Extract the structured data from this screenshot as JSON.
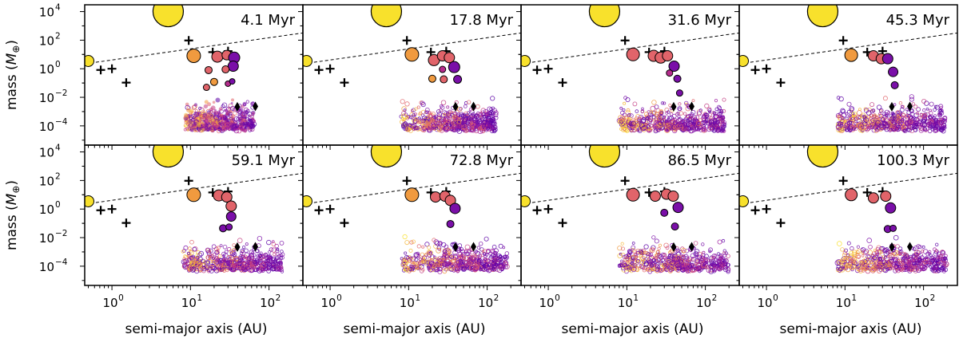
{
  "chart_data": {
    "type": "scatter",
    "layout": "2x4 grid of panels, shared axes",
    "xlabel": "semi-major axis (AU)",
    "ylabel": "mass (M⊕)",
    "ylabel_parts": [
      "mass (",
      "M",
      "⊕",
      ")"
    ],
    "xscale": "log",
    "yscale": "log",
    "xlim": [
      0.45,
      270
    ],
    "ylim": [
      4.5e-06,
      30000
    ],
    "x_ticks": [
      {
        "value": 1,
        "base": "10",
        "exp": "0"
      },
      {
        "value": 10,
        "base": "10",
        "exp": "1"
      },
      {
        "value": 100,
        "base": "10",
        "exp": "2"
      }
    ],
    "y_ticks": [
      {
        "value": 0.0001,
        "base": "10",
        "exp": "−4"
      },
      {
        "value": 0.01,
        "base": "10",
        "exp": "−2"
      },
      {
        "value": 1,
        "base": "10",
        "exp": "0"
      },
      {
        "value": 100,
        "base": "10",
        "exp": "2"
      },
      {
        "value": 10000,
        "base": "10",
        "exp": "4"
      }
    ],
    "reference_line": {
      "style": "dashed",
      "color": "#000000",
      "points": [
        [
          0.45,
          2.2
        ],
        [
          270,
          320
        ]
      ]
    },
    "solar_system": {
      "marker": "+",
      "color": "#000000",
      "points": [
        [
          0.72,
          0.82
        ],
        [
          1.0,
          1.0
        ],
        [
          1.52,
          0.107
        ],
        [
          9.5,
          95
        ],
        [
          19.2,
          14.5
        ],
        [
          30.1,
          17.1
        ]
      ]
    },
    "big_planet": {
      "x": 5.2,
      "y": 10000,
      "label": "large yellow planet",
      "color": "#f8e12c"
    },
    "inner_planet": {
      "x": 0.5,
      "y": 3.5,
      "color": "#f8e12c"
    },
    "diamonds": {
      "marker": "diamond",
      "color": "#000000",
      "points": [
        [
          39.5,
          0.0022
        ],
        [
          67,
          0.0023
        ]
      ]
    },
    "colors": {
      "yellow": "#f8e12c",
      "orange": "#f09a3f",
      "salmon": "#e1646a",
      "magenta": "#b62c8d",
      "purple": "#7a0fa8",
      "edge": "#000000"
    },
    "panels": [
      {
        "time": "4.1 Myr",
        "planets": [
          {
            "x": 11,
            "y": 8,
            "size": 8.5,
            "color": "#f09a3f"
          },
          {
            "x": 22,
            "y": 7,
            "size": 7,
            "color": "#e1646a"
          },
          {
            "x": 29,
            "y": 9,
            "size": 6,
            "color": "#e1646a"
          },
          {
            "x": 36,
            "y": 6,
            "size": 7,
            "color": "#7a0fa8"
          },
          {
            "x": 35,
            "y": 1.5,
            "size": 6.5,
            "color": "#7a0fa8"
          },
          {
            "x": 17,
            "y": 0.8,
            "size": 4.5,
            "color": "#e1646a"
          },
          {
            "x": 28,
            "y": 0.9,
            "size": 4.5,
            "color": "#e1646a"
          },
          {
            "x": 20,
            "y": 0.12,
            "size": 4.5,
            "color": "#f09a3f"
          },
          {
            "x": 16,
            "y": 0.05,
            "size": 4,
            "color": "#e1646a"
          },
          {
            "x": 30,
            "y": 0.09,
            "size": 3.5,
            "color": "#b62c8d"
          },
          {
            "x": 34,
            "y": 0.13,
            "size": 3.5,
            "color": "#7a0fa8"
          }
        ],
        "cloud": {
          "xmin": 8.5,
          "xmax": 65,
          "center": 23,
          "spread": 0.32,
          "ymax": 0.012,
          "purple_fraction": 0.45,
          "filled": true,
          "density": 560,
          "seed": 11
        }
      },
      {
        "time": "17.8 Myr",
        "planets": [
          {
            "x": 11,
            "y": 10,
            "size": 8.5,
            "color": "#f09a3f"
          },
          {
            "x": 21,
            "y": 4,
            "size": 7,
            "color": "#e1646a"
          },
          {
            "x": 27,
            "y": 8,
            "size": 6.5,
            "color": "#e1646a"
          },
          {
            "x": 33,
            "y": 6,
            "size": 6.5,
            "color": "#e1646a"
          },
          {
            "x": 38,
            "y": 1.3,
            "size": 7,
            "color": "#7a0fa8"
          },
          {
            "x": 42,
            "y": 0.18,
            "size": 5,
            "color": "#7a0fa8"
          },
          {
            "x": 20,
            "y": 0.2,
            "size": 4.5,
            "color": "#f09a3f"
          },
          {
            "x": 28,
            "y": 0.18,
            "size": 4.5,
            "color": "#e1646a"
          },
          {
            "x": 27,
            "y": 0.9,
            "size": 4,
            "color": "#b62c8d"
          }
        ],
        "cloud": {
          "xmin": 8,
          "xmax": 130,
          "center": 40,
          "spread": 0.42,
          "ymax": 0.012,
          "purple_fraction": 0.6,
          "filled": false,
          "density": 620,
          "seed": 23
        }
      },
      {
        "time": "31.6 Myr",
        "planets": [
          {
            "x": 12,
            "y": 10,
            "size": 8,
            "color": "#e1646a"
          },
          {
            "x": 22,
            "y": 8,
            "size": 7,
            "color": "#e1646a"
          },
          {
            "x": 27,
            "y": 6,
            "size": 7,
            "color": "#e1646a"
          },
          {
            "x": 33,
            "y": 8,
            "size": 6.5,
            "color": "#e1646a"
          },
          {
            "x": 40,
            "y": 1.5,
            "size": 6.5,
            "color": "#7a0fa8"
          },
          {
            "x": 44,
            "y": 0.2,
            "size": 4.5,
            "color": "#7a0fa8"
          },
          {
            "x": 47,
            "y": 0.02,
            "size": 4,
            "color": "#7a0fa8"
          },
          {
            "x": 35,
            "y": 0.5,
            "size": 4,
            "color": "#b62c8d"
          }
        ],
        "cloud": {
          "xmin": 8,
          "xmax": 180,
          "center": 42,
          "spread": 0.45,
          "ymax": 0.012,
          "purple_fraction": 0.62,
          "filled": false,
          "density": 600,
          "seed": 37
        }
      },
      {
        "time": "45.3 Myr",
        "planets": [
          {
            "x": 12,
            "y": 9,
            "size": 8,
            "color": "#f09a3f"
          },
          {
            "x": 23,
            "y": 8,
            "size": 6.5,
            "color": "#e1646a"
          },
          {
            "x": 29,
            "y": 5,
            "size": 6.5,
            "color": "#e1646a"
          },
          {
            "x": 35,
            "y": 5,
            "size": 6.5,
            "color": "#7a0fa8"
          },
          {
            "x": 41,
            "y": 0.6,
            "size": 6,
            "color": "#7a0fa8"
          },
          {
            "x": 43,
            "y": 0.07,
            "size": 4.5,
            "color": "#7a0fa8"
          }
        ],
        "cloud": {
          "xmin": 8,
          "xmax": 190,
          "center": 42,
          "spread": 0.45,
          "ymax": 0.012,
          "purple_fraction": 0.62,
          "filled": false,
          "density": 580,
          "seed": 41
        }
      },
      {
        "time": "59.1 Myr",
        "planets": [
          {
            "x": 11,
            "y": 10,
            "size": 8.5,
            "color": "#f09a3f"
          },
          {
            "x": 23,
            "y": 9,
            "size": 7,
            "color": "#e1646a"
          },
          {
            "x": 29,
            "y": 7,
            "size": 6.5,
            "color": "#e1646a"
          },
          {
            "x": 33,
            "y": 1.6,
            "size": 6.5,
            "color": "#e1646a"
          },
          {
            "x": 33,
            "y": 0.3,
            "size": 6,
            "color": "#7a0fa8"
          },
          {
            "x": 26,
            "y": 0.045,
            "size": 4.5,
            "color": "#7a0fa8"
          },
          {
            "x": 31,
            "y": 0.055,
            "size": 4,
            "color": "#7a0fa8"
          }
        ],
        "cloud": {
          "xmin": 8,
          "xmax": 150,
          "center": 38,
          "spread": 0.42,
          "ymax": 0.012,
          "purple_fraction": 0.58,
          "filled": false,
          "density": 560,
          "seed": 53
        }
      },
      {
        "time": "72.8 Myr",
        "planets": [
          {
            "x": 11,
            "y": 10,
            "size": 8.5,
            "color": "#f09a3f"
          },
          {
            "x": 22,
            "y": 7,
            "size": 6.5,
            "color": "#e1646a"
          },
          {
            "x": 29,
            "y": 8,
            "size": 6.5,
            "color": "#e1646a"
          },
          {
            "x": 34,
            "y": 4,
            "size": 6.5,
            "color": "#e1646a"
          },
          {
            "x": 39,
            "y": 1.1,
            "size": 6.5,
            "color": "#7a0fa8"
          },
          {
            "x": 34,
            "y": 0.09,
            "size": 4.5,
            "color": "#7a0fa8"
          }
        ],
        "cloud": {
          "xmin": 8,
          "xmax": 180,
          "center": 42,
          "spread": 0.45,
          "ymax": 0.012,
          "purple_fraction": 0.6,
          "filled": false,
          "density": 560,
          "seed": 61
        }
      },
      {
        "time": "86.5 Myr",
        "planets": [
          {
            "x": 12,
            "y": 10,
            "size": 8,
            "color": "#e1646a"
          },
          {
            "x": 23,
            "y": 8,
            "size": 6.5,
            "color": "#e1646a"
          },
          {
            "x": 32,
            "y": 11,
            "size": 6.5,
            "color": "#e1646a"
          },
          {
            "x": 39,
            "y": 8,
            "size": 6.5,
            "color": "#e1646a"
          },
          {
            "x": 45,
            "y": 1.3,
            "size": 6.5,
            "color": "#7a0fa8"
          },
          {
            "x": 30,
            "y": 0.55,
            "size": 4.5,
            "color": "#7a0fa8"
          },
          {
            "x": 41,
            "y": 0.06,
            "size": 4.5,
            "color": "#7a0fa8"
          }
        ],
        "cloud": {
          "xmin": 8,
          "xmax": 200,
          "center": 45,
          "spread": 0.45,
          "ymax": 0.012,
          "purple_fraction": 0.6,
          "filled": false,
          "density": 560,
          "seed": 73
        }
      },
      {
        "time": "100.3 Myr",
        "planets": [
          {
            "x": 12,
            "y": 10,
            "size": 7.5,
            "color": "#e1646a"
          },
          {
            "x": 23,
            "y": 6,
            "size": 6.5,
            "color": "#e1646a"
          },
          {
            "x": 33,
            "y": 8,
            "size": 6.5,
            "color": "#e1646a"
          },
          {
            "x": 38,
            "y": 1.2,
            "size": 6.5,
            "color": "#7a0fa8"
          },
          {
            "x": 35,
            "y": 0.04,
            "size": 4.5,
            "color": "#7a0fa8"
          },
          {
            "x": 41,
            "y": 0.045,
            "size": 4,
            "color": "#7a0fa8"
          }
        ],
        "cloud": {
          "xmin": 8,
          "xmax": 200,
          "center": 45,
          "spread": 0.45,
          "ymax": 0.012,
          "purple_fraction": 0.6,
          "filled": false,
          "density": 560,
          "seed": 89
        }
      }
    ]
  }
}
